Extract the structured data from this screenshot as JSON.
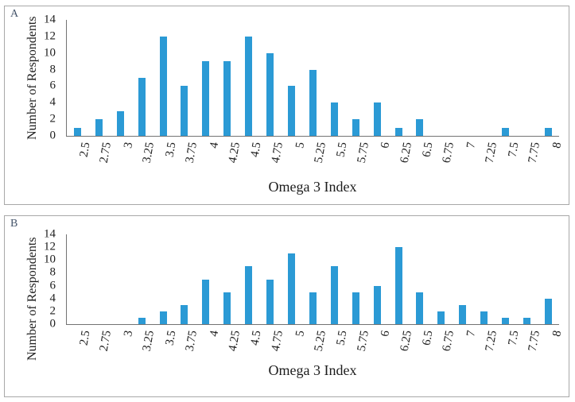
{
  "figure": {
    "background": "#ffffff",
    "panel_border_color": "#a8a8a8",
    "panel_label_color": "#44546A",
    "axis_line_color": "#737373",
    "text_color": "#1c1c1c"
  },
  "chart_data": [
    {
      "type": "bar",
      "panel_label": "A",
      "title": "",
      "xlabel": "Omega 3 Index",
      "ylabel": "Number of Respondents",
      "categories": [
        "2.5",
        "2.75",
        "3",
        "3.25",
        "3.5",
        "3.75",
        "4",
        "4.25",
        "4.5",
        "4.75",
        "5",
        "5.25",
        "5.5",
        "5.75",
        "6",
        "6.25",
        "6.5",
        "6.75",
        "7",
        "7.25",
        "7.5",
        "7.75",
        "8"
      ],
      "values": [
        1,
        2,
        3,
        7,
        12,
        6,
        9,
        9,
        12,
        10,
        6,
        8,
        4,
        2,
        4,
        1,
        2,
        0,
        0,
        0,
        1,
        0,
        1
      ],
      "ylim": [
        0,
        14
      ],
      "yticks": [
        0,
        2,
        4,
        6,
        8,
        10,
        12,
        14
      ],
      "bar_color": "#2B9AD5",
      "grid": false,
      "legend": "none"
    },
    {
      "type": "bar",
      "panel_label": "B",
      "title": "",
      "xlabel": "Omega 3 Index",
      "ylabel": "Number of Respondents",
      "categories": [
        "2.5",
        "2.75",
        "3",
        "3.25",
        "3.5",
        "3.75",
        "4",
        "4.25",
        "4.5",
        "4.75",
        "5",
        "5.25",
        "5.5",
        "5.75",
        "6",
        "6.25",
        "6.5",
        "6.75",
        "7",
        "7.25",
        "7.5",
        "7.75",
        "8"
      ],
      "values": [
        0,
        0,
        0,
        1,
        2,
        3,
        7,
        5,
        9,
        7,
        11,
        5,
        9,
        5,
        6,
        12,
        5,
        2,
        3,
        2,
        1,
        1,
        4
      ],
      "ylim": [
        0,
        14
      ],
      "yticks": [
        0,
        2,
        4,
        6,
        8,
        10,
        12,
        14
      ],
      "bar_color": "#2B9AD5",
      "grid": false,
      "legend": "none"
    }
  ]
}
